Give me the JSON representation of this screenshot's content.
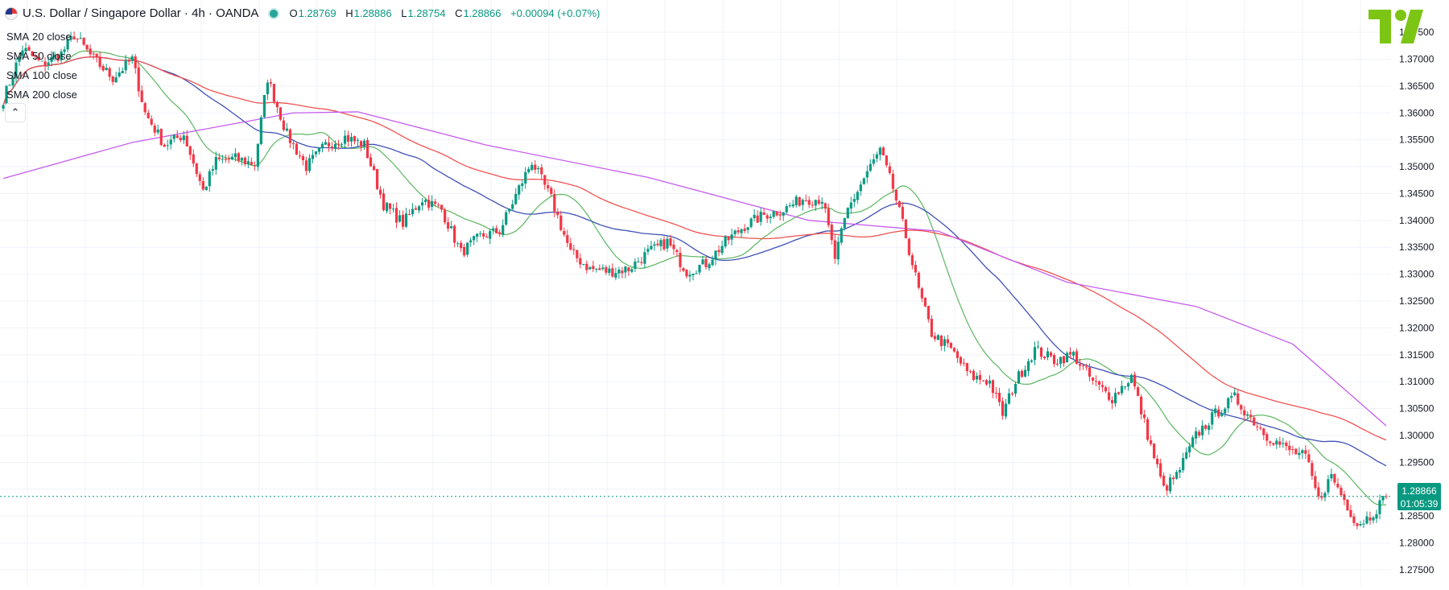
{
  "header": {
    "symbol_title": "U.S. Dollar / Singapore Dollar · 4h · OANDA",
    "open_label": "O",
    "open": "1.28769",
    "high_label": "H",
    "high": "1.28886",
    "low_label": "L",
    "low": "1.28754",
    "close_label": "C",
    "close": "1.28866",
    "change": "+0.00094 (+0.07%)"
  },
  "indicators": [
    {
      "name": "SMA",
      "param": "20 close",
      "color": "#66bb6a"
    },
    {
      "name": "SMA",
      "param": "50 close",
      "color": "#3f51b5"
    },
    {
      "name": "SMA",
      "param": "100 close",
      "color": "#ef5350"
    },
    {
      "name": "SMA",
      "param": "200 close",
      "color": "#c55cf0"
    }
  ],
  "collapse_icon": "chevron-up-icon",
  "price_tag": {
    "price": "1.28866",
    "countdown": "01:05:39",
    "color": "#089981"
  },
  "logo_icon": "tradingview-logo-icon",
  "colors": {
    "up": "#089981",
    "down": "#f23645",
    "grid": "#f0f3fa",
    "axis_text": "#131722"
  },
  "chart_data": {
    "type": "candlestick",
    "timeframe": "4h",
    "ylim": [
      1.272,
      1.381
    ],
    "y_ticks": [
      "1.37500",
      "1.37000",
      "1.36500",
      "1.36000",
      "1.35500",
      "1.35000",
      "1.34500",
      "1.34000",
      "1.33500",
      "1.33000",
      "1.32500",
      "1.32000",
      "1.31500",
      "1.31000",
      "1.30500",
      "1.30000",
      "1.29500",
      "1.29000",
      "1.28500",
      "1.28000",
      "1.27500"
    ],
    "current_price": 1.28866,
    "anchors": [
      [
        0,
        1.3625
      ],
      [
        6,
        1.372
      ],
      [
        12,
        1.369
      ],
      [
        18,
        1.371
      ],
      [
        22,
        1.3745
      ],
      [
        28,
        1.37
      ],
      [
        34,
        1.3665
      ],
      [
        40,
        1.37
      ],
      [
        44,
        1.36
      ],
      [
        50,
        1.354
      ],
      [
        56,
        1.356
      ],
      [
        62,
        1.3455
      ],
      [
        66,
        1.351
      ],
      [
        72,
        1.3515
      ],
      [
        78,
        1.3505
      ],
      [
        82,
        1.3665
      ],
      [
        88,
        1.356
      ],
      [
        94,
        1.35
      ],
      [
        100,
        1.354
      ],
      [
        106,
        1.3555
      ],
      [
        112,
        1.354
      ],
      [
        118,
        1.343
      ],
      [
        124,
        1.3395
      ],
      [
        130,
        1.344
      ],
      [
        136,
        1.342
      ],
      [
        142,
        1.334
      ],
      [
        148,
        1.337
      ],
      [
        154,
        1.338
      ],
      [
        160,
        1.346
      ],
      [
        164,
        1.351
      ],
      [
        170,
        1.344
      ],
      [
        176,
        1.334
      ],
      [
        182,
        1.331
      ],
      [
        188,
        1.3305
      ],
      [
        194,
        1.331
      ],
      [
        200,
        1.334
      ],
      [
        206,
        1.336
      ],
      [
        212,
        1.3305
      ],
      [
        218,
        1.332
      ],
      [
        224,
        1.336
      ],
      [
        230,
        1.339
      ],
      [
        236,
        1.341
      ],
      [
        242,
        1.342
      ],
      [
        248,
        1.344
      ],
      [
        254,
        1.344
      ],
      [
        258,
        1.333
      ],
      [
        262,
        1.342
      ],
      [
        268,
        1.349
      ],
      [
        272,
        1.353
      ],
      [
        276,
        1.346
      ],
      [
        280,
        1.337
      ],
      [
        284,
        1.327
      ],
      [
        288,
        1.319
      ],
      [
        294,
        1.316
      ],
      [
        300,
        1.311
      ],
      [
        306,
        1.31
      ],
      [
        310,
        1.304
      ],
      [
        314,
        1.31
      ],
      [
        320,
        1.316
      ],
      [
        326,
        1.314
      ],
      [
        332,
        1.315
      ],
      [
        338,
        1.31
      ],
      [
        344,
        1.307
      ],
      [
        350,
        1.311
      ],
      [
        356,
        1.298
      ],
      [
        360,
        1.29
      ],
      [
        364,
        1.2925
      ],
      [
        370,
        1.3
      ],
      [
        376,
        1.304
      ],
      [
        382,
        1.307
      ],
      [
        386,
        1.304
      ],
      [
        392,
        1.3
      ],
      [
        398,
        1.2975
      ],
      [
        404,
        1.296
      ],
      [
        408,
        1.288
      ],
      [
        412,
        1.2925
      ],
      [
        416,
        1.288
      ],
      [
        420,
        1.2835
      ],
      [
        424,
        1.285
      ],
      [
        429,
        1.28866
      ]
    ],
    "sma_series": [
      {
        "name": "SMA 20 close",
        "color": "#66bb6a",
        "period": 20
      },
      {
        "name": "SMA 50 close",
        "color": "#3f51b5",
        "period": 50
      },
      {
        "name": "SMA 100 close",
        "color": "#ef5350",
        "period": 100
      },
      {
        "name": "SMA 200 close",
        "color": "#c55cf0",
        "points": [
          [
            0,
            1.3478
          ],
          [
            40,
            1.3545
          ],
          [
            90,
            1.36
          ],
          [
            110,
            1.3602
          ],
          [
            150,
            1.354
          ],
          [
            200,
            1.348
          ],
          [
            250,
            1.34
          ],
          [
            290,
            1.338
          ],
          [
            330,
            1.3285
          ],
          [
            370,
            1.324
          ],
          [
            400,
            1.317
          ],
          [
            429,
            1.3018
          ]
        ]
      }
    ]
  }
}
